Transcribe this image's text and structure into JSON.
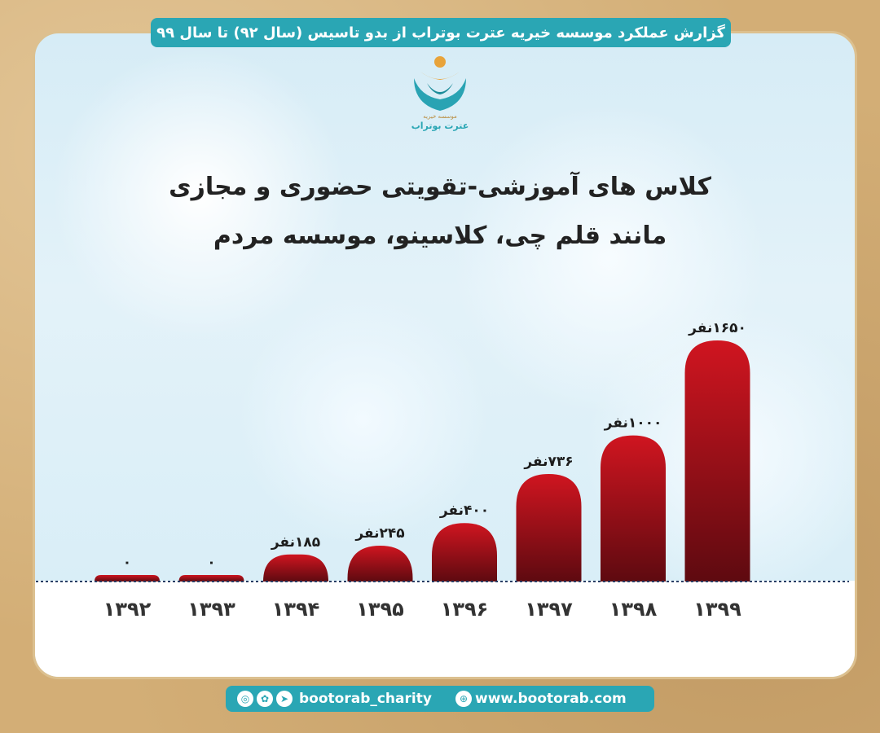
{
  "header": {
    "text": "گزارش عملکرد موسسه خیریه عترت بوتراب از بدو تاسیس (سال ۹۲) تا سال ۹۹"
  },
  "logo": {
    "caption_small": "موسسه خیریه",
    "caption_large": "عترت بوتراب"
  },
  "title": {
    "line1": "کلاس های آموزشی-تقویتی حضوری و مجازی",
    "line2": "مانند قلم چی، کلاسینو، موسسه مردم"
  },
  "chart_data": {
    "type": "bar",
    "categories": [
      "۱۳۹۲",
      "۱۳۹۳",
      "۱۳۹۴",
      "۱۳۹۵",
      "۱۳۹۶",
      "۱۳۹۷",
      "۱۳۹۸",
      "۱۳۹۹"
    ],
    "values": [
      0,
      0,
      185,
      245,
      400,
      736,
      1000,
      1650
    ],
    "data_labels": [
      "۰",
      "۰",
      "۱۸۵نفر",
      "۲۴۵نفر",
      "۴۰۰نفر",
      "۷۳۶نفر",
      "۱۰۰۰نفر",
      "۱۶۵۰نفر"
    ],
    "ylim": [
      0,
      1650
    ],
    "grid": false,
    "bar_color": "#b3101b"
  },
  "footer": {
    "social_handle": "bootorab_charity",
    "website": "www.bootorab.com",
    "icons": [
      "instagram-icon",
      "aparat-icon",
      "telegram-icon",
      "globe-icon"
    ]
  },
  "colors": {
    "accent": "#2aa6b4",
    "bar_top": "#d01520",
    "bar_bottom": "#5e0a10"
  }
}
